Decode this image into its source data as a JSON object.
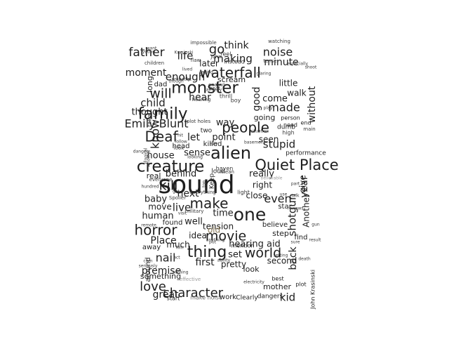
{
  "wordcloud": {
    "palette": {
      "dark": "#1e1e1e",
      "mid": "#3a3a3a",
      "gray": "#6b6b6b",
      "light": "#9a9a9a",
      "olive": "#8a7a5a"
    },
    "words": [
      {
        "text": "sound",
        "c": "dark"
      },
      {
        "text": "family",
        "c": "dark"
      },
      {
        "text": "monster",
        "c": "dark"
      },
      {
        "text": "waterfall",
        "c": "dark"
      },
      {
        "text": "one",
        "c": "dark"
      },
      {
        "text": "creature",
        "c": "dark"
      },
      {
        "text": "alien",
        "c": "dark"
      },
      {
        "text": "Quiet Place",
        "c": "dark"
      },
      {
        "text": "thing",
        "c": "dark"
      },
      {
        "text": "people",
        "c": "dark"
      },
      {
        "text": "character",
        "c": "dark"
      },
      {
        "text": "world",
        "c": "dark"
      },
      {
        "text": "horror",
        "c": "dark"
      },
      {
        "text": "movie",
        "c": "dark"
      },
      {
        "text": "love",
        "c": "dark"
      },
      {
        "text": "make",
        "c": "dark"
      },
      {
        "text": "kill",
        "c": "dark"
      },
      {
        "text": "Deaf",
        "c": "dark"
      },
      {
        "text": "will",
        "c": "dark"
      },
      {
        "text": "father",
        "c": "dark"
      },
      {
        "text": "noise",
        "c": "dark"
      },
      {
        "text": "go",
        "c": "dark"
      },
      {
        "text": "think",
        "c": "dark"
      },
      {
        "text": "life",
        "c": "dark"
      },
      {
        "text": "making",
        "c": "dark"
      },
      {
        "text": "minute",
        "c": "dark"
      },
      {
        "text": "moment",
        "c": "dark"
      },
      {
        "text": "later",
        "c": "dark"
      },
      {
        "text": "enough",
        "c": "dark"
      },
      {
        "text": "Emily Blunt",
        "c": "dark"
      },
      {
        "text": "made",
        "c": "dark"
      },
      {
        "text": "without",
        "c": "dark"
      },
      {
        "text": "child",
        "c": "dark"
      },
      {
        "text": "hear",
        "c": "dark"
      },
      {
        "text": "thought",
        "c": "dark"
      },
      {
        "text": "know",
        "c": "dark"
      },
      {
        "text": "stupid",
        "c": "dark"
      },
      {
        "text": "house",
        "c": "dark"
      },
      {
        "text": "sense",
        "c": "dark"
      },
      {
        "text": "time",
        "c": "dark"
      },
      {
        "text": "live",
        "c": "dark"
      },
      {
        "text": "next",
        "c": "dark"
      },
      {
        "text": "even",
        "c": "dark"
      },
      {
        "text": "year",
        "c": "dark"
      },
      {
        "text": "back",
        "c": "dark"
      },
      {
        "text": "shotgun",
        "c": "dark"
      },
      {
        "text": "nail",
        "c": "dark"
      },
      {
        "text": "premise",
        "c": "dark"
      },
      {
        "text": "first",
        "c": "dark"
      },
      {
        "text": "great",
        "c": "dark"
      },
      {
        "text": "kid",
        "c": "dark"
      },
      {
        "text": "Place",
        "c": "dark"
      },
      {
        "text": "human",
        "c": "dark"
      },
      {
        "text": "baby",
        "c": "dark"
      },
      {
        "text": "tension",
        "c": "dark"
      },
      {
        "text": "set",
        "c": "dark"
      },
      {
        "text": "pretty",
        "c": "dark"
      },
      {
        "text": "hearing aid",
        "c": "dark"
      },
      {
        "text": "way",
        "c": "dark"
      },
      {
        "text": "point",
        "c": "dark"
      },
      {
        "text": "let",
        "c": "dark"
      },
      {
        "text": "seen",
        "c": "dark"
      },
      {
        "text": "going",
        "c": "dark"
      },
      {
        "text": "come",
        "c": "dark"
      },
      {
        "text": "walk",
        "c": "dark"
      },
      {
        "text": "little",
        "c": "dark"
      },
      {
        "text": "scream",
        "c": "dark"
      },
      {
        "text": "good",
        "c": "dark"
      },
      {
        "text": "really",
        "c": "dark"
      },
      {
        "text": "right",
        "c": "dark"
      },
      {
        "text": "close",
        "c": "dark"
      },
      {
        "text": "give",
        "c": "dark"
      },
      {
        "text": "behind",
        "c": "dark"
      },
      {
        "text": "real",
        "c": "dark"
      },
      {
        "text": "move",
        "c": "dark"
      },
      {
        "text": "well",
        "c": "dark"
      },
      {
        "text": "idea",
        "c": "dark"
      },
      {
        "text": "much",
        "c": "dark"
      },
      {
        "text": "second",
        "c": "dark"
      },
      {
        "text": "look",
        "c": "dark"
      },
      {
        "text": "something",
        "c": "dark"
      },
      {
        "text": "around",
        "c": "dark"
      },
      {
        "text": "mother",
        "c": "dark"
      },
      {
        "text": "work",
        "c": "dark"
      },
      {
        "text": "Clearly",
        "c": "dark"
      },
      {
        "text": "dangers",
        "c": "dark"
      },
      {
        "text": "find",
        "c": "dark"
      },
      {
        "text": "Another",
        "c": "dark"
      },
      {
        "text": "step",
        "c": "dark"
      },
      {
        "text": "believe",
        "c": "dark"
      },
      {
        "text": "star",
        "c": "dark"
      },
      {
        "text": "found",
        "c": "dark"
      },
      {
        "text": "away",
        "c": "dark"
      },
      {
        "text": "long",
        "c": "dark"
      },
      {
        "text": "dad",
        "c": "dark"
      },
      {
        "text": "two",
        "c": "dark"
      },
      {
        "text": "killed",
        "c": "dark"
      },
      {
        "text": "loud",
        "c": "dark"
      },
      {
        "text": "head",
        "c": "dark"
      },
      {
        "text": "Keep",
        "c": "dark"
      },
      {
        "text": "dumb",
        "c": "dark"
      },
      {
        "text": "performance",
        "c": "dark"
      },
      {
        "text": "person",
        "c": "dark"
      },
      {
        "text": "need",
        "c": "dark"
      },
      {
        "text": "end",
        "c": "dark"
      },
      {
        "text": "mention",
        "c": "dark"
      },
      {
        "text": "best",
        "c": "dark"
      },
      {
        "text": "plot",
        "c": "dark"
      },
      {
        "text": "start",
        "c": "dark"
      },
      {
        "text": "John Krasinski",
        "c": "dark"
      },
      {
        "text": "old",
        "c": "olive"
      },
      {
        "text": "make noise",
        "c": "gray"
      },
      {
        "text": "impossible",
        "c": "mid"
      },
      {
        "text": "watching",
        "c": "mid"
      },
      {
        "text": "children",
        "c": "mid"
      },
      {
        "text": "flaw",
        "c": "mid"
      },
      {
        "text": "feel",
        "c": "mid"
      },
      {
        "text": "instead",
        "c": "mid"
      },
      {
        "text": "tense",
        "c": "mid"
      },
      {
        "text": "John",
        "c": "mid"
      },
      {
        "text": "ending",
        "c": "mid"
      },
      {
        "text": "beat",
        "c": "mid"
      },
      {
        "text": "thrill",
        "c": "mid"
      },
      {
        "text": "boy",
        "c": "mid"
      },
      {
        "text": "hearing",
        "c": "mid"
      },
      {
        "text": "plot holes",
        "c": "mid"
      },
      {
        "text": "high",
        "c": "mid"
      },
      {
        "text": "main",
        "c": "mid"
      },
      {
        "text": "look",
        "c": "mid"
      },
      {
        "text": "mean",
        "c": "mid"
      },
      {
        "text": "light",
        "c": "mid"
      },
      {
        "text": "everyone",
        "c": "mid"
      },
      {
        "text": "everything",
        "c": "mid"
      },
      {
        "text": "military",
        "c": "mid"
      },
      {
        "text": "Spoiler",
        "c": "mid"
      },
      {
        "text": "film",
        "c": "mid"
      },
      {
        "text": "act",
        "c": "mid"
      },
      {
        "text": "anything",
        "c": "mid"
      },
      {
        "text": "put",
        "c": "mid"
      },
      {
        "text": "electricity",
        "c": "mid"
      },
      {
        "text": "effective",
        "c": "light"
      },
      {
        "text": "take",
        "c": "mid"
      },
      {
        "text": "though",
        "c": "mid"
      },
      {
        "text": "saying",
        "c": "mid"
      },
      {
        "text": "already",
        "c": "mid"
      },
      {
        "text": "especially",
        "c": "mid"
      },
      {
        "text": "play",
        "c": "mid"
      },
      {
        "text": "shoot",
        "c": "mid"
      },
      {
        "text": "death",
        "c": "mid"
      },
      {
        "text": "corn",
        "c": "mid"
      },
      {
        "text": "seriously",
        "c": "mid"
      },
      {
        "text": "ability",
        "c": "mid"
      },
      {
        "text": "nothing",
        "c": "mid"
      },
      {
        "text": "follow",
        "c": "mid"
      },
      {
        "text": "looking",
        "c": "mid"
      },
      {
        "text": "dangers",
        "c": "mid"
      },
      {
        "text": "situation",
        "c": "mid"
      },
      {
        "text": "basement",
        "c": "mid"
      },
      {
        "text": "result",
        "c": "mid"
      },
      {
        "text": "young",
        "c": "mid"
      },
      {
        "text": "lived",
        "c": "mid"
      },
      {
        "text": "probably",
        "c": "mid"
      },
      {
        "text": "lot",
        "c": "mid"
      },
      {
        "text": "want",
        "c": "mid"
      },
      {
        "text": "Krasinski",
        "c": "mid"
      },
      {
        "text": "glaring",
        "c": "mid"
      },
      {
        "text": "hundred",
        "c": "mid"
      },
      {
        "text": "remote",
        "c": "mid"
      },
      {
        "text": "gun",
        "c": "mid"
      },
      {
        "text": "believable",
        "c": "light"
      },
      {
        "text": "part",
        "c": "mid"
      },
      {
        "text": "illogical",
        "c": "mid"
      },
      {
        "text": "whole",
        "c": "mid"
      },
      {
        "text": "visit",
        "c": "mid"
      },
      {
        "text": "got",
        "c": "mid"
      },
      {
        "text": "use",
        "c": "mid"
      },
      {
        "text": "hit",
        "c": "mid"
      },
      {
        "text": "say",
        "c": "mid"
      },
      {
        "text": "top",
        "c": "mid"
      },
      {
        "text": "reviews",
        "c": "mid"
      },
      {
        "text": "talk",
        "c": "mid"
      },
      {
        "text": "setting",
        "c": "mid"
      },
      {
        "text": "sure",
        "c": "mid"
      },
      {
        "text": "haven",
        "c": "mid"
      }
    ]
  }
}
